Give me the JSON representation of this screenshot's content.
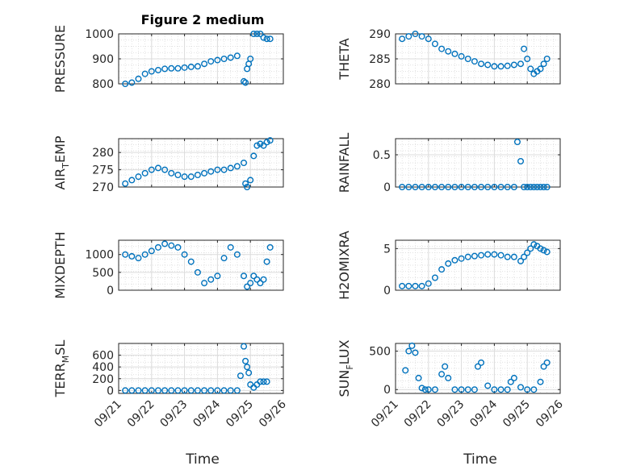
{
  "figure_title": "Figure 2 medium",
  "x_axis_label": "Time",
  "x_tick_labels": [
    "09/21",
    "09/22",
    "09/23",
    "09/24",
    "09/25",
    "09/26"
  ],
  "marker_color": "#0072BD",
  "chart_data": [
    {
      "type": "scatter",
      "panel": "pressure",
      "ylabel": "PRESSURE",
      "ylim": [
        800,
        1000
      ],
      "yticks": [
        800,
        900,
        1000
      ],
      "ytick_labels": [
        "800",
        "900",
        "1000"
      ],
      "xlim": [
        0,
        5
      ],
      "grid": true,
      "x": [
        0.2,
        0.4,
        0.6,
        0.8,
        1.0,
        1.2,
        1.4,
        1.6,
        1.8,
        2.0,
        2.2,
        2.4,
        2.6,
        2.8,
        3.0,
        3.2,
        3.4,
        3.6,
        3.8,
        3.85,
        3.9,
        3.95,
        4.0,
        4.1,
        4.2,
        4.3,
        4.4,
        4.5,
        4.6
      ],
      "y": [
        800,
        805,
        820,
        840,
        850,
        855,
        860,
        862,
        862,
        865,
        868,
        870,
        880,
        890,
        895,
        900,
        905,
        912,
        810,
        805,
        860,
        880,
        900,
        1000,
        1000,
        1000,
        985,
        980,
        980
      ]
    },
    {
      "type": "scatter",
      "panel": "theta",
      "ylabel": "THETA",
      "ylim": [
        280,
        290
      ],
      "yticks": [
        280,
        285,
        290
      ],
      "ytick_labels": [
        "280",
        "285",
        "290"
      ],
      "xlim": [
        0,
        5
      ],
      "grid": true,
      "x": [
        0.2,
        0.4,
        0.6,
        0.8,
        1.0,
        1.2,
        1.4,
        1.6,
        1.8,
        2.0,
        2.2,
        2.4,
        2.6,
        2.8,
        3.0,
        3.2,
        3.4,
        3.6,
        3.8,
        3.9,
        4.0,
        4.1,
        4.2,
        4.3,
        4.4,
        4.5,
        4.6
      ],
      "y": [
        289,
        289.5,
        290,
        289.5,
        289,
        288,
        287,
        286.5,
        286,
        285.5,
        285,
        284.5,
        284,
        283.8,
        283.5,
        283.5,
        283.6,
        283.8,
        284,
        287,
        285,
        283,
        282,
        282.5,
        283,
        284,
        285
      ]
    },
    {
      "type": "scatter",
      "panel": "air_temp",
      "ylabel": "AIR_TEMP",
      "ylim": [
        270,
        284
      ],
      "yticks": [
        270,
        275,
        280
      ],
      "ytick_labels": [
        "270",
        "275",
        "280"
      ],
      "xlim": [
        0,
        5
      ],
      "grid": true,
      "x": [
        0.2,
        0.4,
        0.6,
        0.8,
        1.0,
        1.2,
        1.4,
        1.6,
        1.8,
        2.0,
        2.2,
        2.4,
        2.6,
        2.8,
        3.0,
        3.2,
        3.4,
        3.6,
        3.8,
        3.85,
        3.9,
        4.0,
        4.1,
        4.2,
        4.3,
        4.4,
        4.5,
        4.6
      ],
      "y": [
        271,
        272,
        273,
        274,
        275,
        275.5,
        275,
        274,
        273.5,
        273,
        273,
        273.5,
        274,
        274.5,
        275,
        275,
        275.5,
        276,
        277,
        271,
        270,
        272,
        279,
        282,
        282.5,
        282,
        283,
        283.5
      ]
    },
    {
      "type": "scatter",
      "panel": "rainfall",
      "ylabel": "RAINFALL",
      "ylim": [
        0,
        0.75
      ],
      "yticks": [
        0,
        0.5
      ],
      "ytick_labels": [
        "0",
        "0.5"
      ],
      "xlim": [
        0,
        5
      ],
      "grid": true,
      "x": [
        0.2,
        0.4,
        0.6,
        0.8,
        1.0,
        1.2,
        1.4,
        1.6,
        1.8,
        2.0,
        2.2,
        2.4,
        2.6,
        2.8,
        3.0,
        3.2,
        3.4,
        3.6,
        3.7,
        3.8,
        3.9,
        4.0,
        4.1,
        4.2,
        4.3,
        4.4,
        4.5,
        4.6
      ],
      "y": [
        0,
        0,
        0,
        0,
        0,
        0,
        0,
        0,
        0,
        0,
        0,
        0,
        0,
        0,
        0,
        0,
        0,
        0,
        0.7,
        0.4,
        0,
        0,
        0,
        0,
        0,
        0,
        0,
        0
      ]
    },
    {
      "type": "scatter",
      "panel": "mixdepth",
      "ylabel": "MIXDEPTH",
      "ylim": [
        0,
        1400
      ],
      "yticks": [
        0,
        500,
        1000
      ],
      "ytick_labels": [
        "0",
        "500",
        "1000"
      ],
      "xlim": [
        0,
        5
      ],
      "grid": true,
      "x": [
        0.2,
        0.4,
        0.6,
        0.8,
        1.0,
        1.2,
        1.4,
        1.6,
        1.8,
        2.0,
        2.2,
        2.4,
        2.6,
        2.8,
        3.0,
        3.2,
        3.4,
        3.6,
        3.8,
        3.9,
        4.0,
        4.1,
        4.2,
        4.3,
        4.4,
        4.5,
        4.6
      ],
      "y": [
        1000,
        950,
        900,
        1000,
        1100,
        1200,
        1300,
        1250,
        1200,
        1000,
        800,
        500,
        200,
        300,
        400,
        900,
        1200,
        1000,
        400,
        100,
        200,
        400,
        300,
        200,
        300,
        800,
        1200
      ]
    },
    {
      "type": "scatter",
      "panel": "h2omixra",
      "ylabel": "H2OMIXRA",
      "ylim": [
        0,
        6
      ],
      "yticks": [
        0,
        5
      ],
      "ytick_labels": [
        "0",
        "5"
      ],
      "xlim": [
        0,
        5
      ],
      "grid": true,
      "x": [
        0.2,
        0.4,
        0.6,
        0.8,
        1.0,
        1.2,
        1.4,
        1.6,
        1.8,
        2.0,
        2.2,
        2.4,
        2.6,
        2.8,
        3.0,
        3.2,
        3.4,
        3.6,
        3.8,
        3.9,
        4.0,
        4.1,
        4.2,
        4.3,
        4.4,
        4.5,
        4.6
      ],
      "y": [
        0.5,
        0.5,
        0.5,
        0.5,
        0.8,
        1.5,
        2.5,
        3.2,
        3.6,
        3.8,
        4,
        4.1,
        4.2,
        4.3,
        4.3,
        4.2,
        4,
        4,
        3.5,
        4,
        4.5,
        5,
        5.5,
        5.3,
        5,
        4.8,
        4.6
      ]
    },
    {
      "type": "scatter",
      "panel": "terr_msl",
      "ylabel": "TERR_MSL",
      "ylim": [
        -50,
        800
      ],
      "yticks": [
        0,
        200,
        400,
        600
      ],
      "ytick_labels": [
        "0",
        "200",
        "400",
        "600"
      ],
      "xlim": [
        0,
        5
      ],
      "grid": true,
      "x": [
        0.2,
        0.4,
        0.6,
        0.8,
        1.0,
        1.2,
        1.4,
        1.6,
        1.8,
        2.0,
        2.2,
        2.4,
        2.6,
        2.8,
        3.0,
        3.2,
        3.4,
        3.6,
        3.7,
        3.8,
        3.85,
        3.9,
        3.95,
        4.0,
        4.1,
        4.2,
        4.3,
        4.4,
        4.5
      ],
      "y": [
        0,
        0,
        0,
        0,
        0,
        0,
        0,
        0,
        0,
        0,
        0,
        0,
        0,
        0,
        0,
        0,
        0,
        0,
        250,
        750,
        500,
        400,
        300,
        100,
        50,
        100,
        150,
        150,
        150
      ]
    },
    {
      "type": "scatter",
      "panel": "sun_flux",
      "ylabel": "SUN_FLUX",
      "ylim": [
        -50,
        600
      ],
      "yticks": [
        0,
        500
      ],
      "ytick_labels": [
        "0",
        "500"
      ],
      "xlim": [
        0,
        5
      ],
      "grid": true,
      "x": [
        0.3,
        0.4,
        0.5,
        0.6,
        0.7,
        0.8,
        0.9,
        1.0,
        1.2,
        1.4,
        1.5,
        1.6,
        1.8,
        2.0,
        2.2,
        2.4,
        2.5,
        2.6,
        2.8,
        3.0,
        3.2,
        3.4,
        3.5,
        3.6,
        3.8,
        4.0,
        4.2,
        4.4,
        4.5,
        4.6
      ],
      "y": [
        250,
        500,
        570,
        480,
        150,
        20,
        0,
        0,
        0,
        200,
        300,
        150,
        0,
        0,
        0,
        0,
        300,
        350,
        50,
        0,
        0,
        0,
        100,
        150,
        30,
        0,
        0,
        100,
        300,
        350
      ]
    }
  ]
}
